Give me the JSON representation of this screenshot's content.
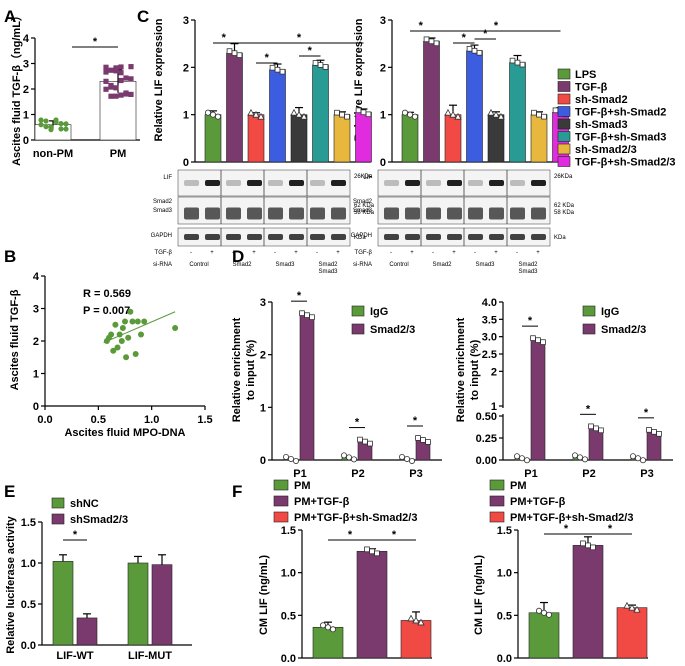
{
  "panels": [
    "A",
    "B",
    "C",
    "D",
    "E",
    "F"
  ],
  "colors": {
    "green": "#5a9a3a",
    "purple": "#7b3a6e",
    "red": "#f14a44",
    "blue": "#3c5de0",
    "gray": "#3a3a3a",
    "teal": "#289c94",
    "gold": "#e8b73e",
    "magenta": "#e02bde",
    "axis": "#000000"
  },
  "chart_data": [
    {
      "id": "A",
      "type": "bar",
      "ylabel": "Ascites fluid TGF-β（ng/mL）",
      "categories": [
        "non-PM",
        "PM"
      ],
      "values": [
        0.6,
        2.3
      ],
      "errors": [
        0.15,
        0.45
      ],
      "ylim": [
        0,
        4
      ],
      "yticks": [
        "0",
        "1",
        "2",
        "3",
        "4"
      ],
      "significance": [
        "*"
      ]
    },
    {
      "id": "B",
      "type": "scatter",
      "xlabel": "Ascites fluid MPO-DNA",
      "ylabel": "Ascites fluid TGF-β",
      "xlim": [
        0,
        1.5
      ],
      "ylim": [
        0,
        4
      ],
      "xticks": [
        "0.0",
        "0.5",
        "1.0",
        "1.5"
      ],
      "yticks": [
        "0",
        "1",
        "2",
        "3",
        "4"
      ],
      "stats": [
        "R = 0.569",
        "P = 0.007"
      ],
      "points": [
        [
          0.58,
          2.0
        ],
        [
          0.6,
          2.1
        ],
        [
          0.62,
          2.2
        ],
        [
          0.64,
          1.7
        ],
        [
          0.66,
          2.5
        ],
        [
          0.68,
          1.8
        ],
        [
          0.7,
          2.2
        ],
        [
          0.72,
          2.0
        ],
        [
          0.73,
          2.4
        ],
        [
          0.75,
          2.6
        ],
        [
          0.76,
          1.5
        ],
        [
          0.78,
          2.1
        ],
        [
          0.8,
          2.9
        ],
        [
          0.82,
          2.6
        ],
        [
          0.85,
          1.6
        ],
        [
          0.87,
          2.6
        ],
        [
          0.9,
          2.2
        ],
        [
          0.93,
          2.6
        ],
        [
          1.22,
          2.4
        ]
      ],
      "fit": [
        [
          0.55,
          1.95
        ],
        [
          1.22,
          2.9
        ]
      ]
    },
    {
      "id": "C1",
      "type": "bar",
      "ylabel": "Relative LIF expression",
      "categories": [
        "LPS",
        "TGF-β",
        "sh-Smad2",
        "TGF-β+sh-Smad2",
        "sh-Smad3",
        "TGF-β+sh-Smad3",
        "sh-Smad2/3",
        "TGF-β+sh-Smad2/3"
      ],
      "values": [
        1.0,
        2.3,
        1.0,
        1.95,
        1.0,
        2.05,
        1.0,
        1.05
      ],
      "errors": [
        0.08,
        0.2,
        0.04,
        0.12,
        0.15,
        0.1,
        0.06,
        0.07
      ],
      "ylim": [
        0,
        3
      ],
      "yticks": [
        "0",
        "1",
        "2",
        "3"
      ],
      "significance": [
        "*",
        "*",
        "*",
        "*"
      ]
    },
    {
      "id": "C2",
      "type": "bar",
      "ylabel": "Relative LIF expression",
      "categories": [
        "LPS",
        "TGF-β",
        "sh-Smad2",
        "TGF-β+sh-Smad2",
        "sh-Smad3",
        "TGF-β+sh-Smad3",
        "sh-Smad2/3",
        "TGF-β+sh-Smad2/3"
      ],
      "values": [
        1.0,
        2.55,
        1.0,
        2.35,
        1.0,
        2.1,
        1.0,
        1.05
      ],
      "errors": [
        0.05,
        0.07,
        0.2,
        0.12,
        0.06,
        0.15,
        0.06,
        0.1
      ],
      "ylim": [
        0,
        3
      ],
      "yticks": [
        "0",
        "1",
        "2",
        "3"
      ],
      "significance": [
        "*",
        "*",
        "*",
        "*"
      ]
    },
    {
      "id": "D1",
      "type": "bar",
      "ylabel_lines": [
        "Relative enrichment",
        "to input (%)"
      ],
      "categories": [
        "P1",
        "P2",
        "P3"
      ],
      "series": [
        {
          "name": "IgG",
          "values": [
            0.02,
            0.05,
            0.02
          ]
        },
        {
          "name": "Smad2/3",
          "values": [
            2.75,
            0.35,
            0.38
          ]
        }
      ],
      "ylim": [
        0,
        3
      ],
      "yticks": [
        "0",
        "1",
        "2",
        "3"
      ],
      "significance": [
        "*",
        "*",
        "*"
      ]
    },
    {
      "id": "D2",
      "type": "bar",
      "ylabel_lines": [
        "Relative enrichment",
        "to input (%)"
      ],
      "categories": [
        "P1",
        "P2",
        "P3"
      ],
      "series": [
        {
          "name": "IgG",
          "values": [
            0.02,
            0.03,
            0.02
          ]
        },
        {
          "name": "Smad2/3",
          "values": [
            2.9,
            0.36,
            0.32
          ]
        }
      ],
      "ylim": [
        0,
        4
      ],
      "yticks": [
        "0.00",
        "0.25",
        "0.50",
        "1",
        "2",
        "2.5",
        "3.0",
        "3.5",
        "4.0"
      ],
      "significance": [
        "*",
        "*",
        "*"
      ]
    },
    {
      "id": "E",
      "type": "bar",
      "ylabel": "Relative luciferase activity",
      "categories": [
        "LIF-WT",
        "LIF-MUT"
      ],
      "series": [
        {
          "name": "shNC",
          "values": [
            1.02,
            1.0
          ]
        },
        {
          "name": "shSmad2/3",
          "values": [
            0.33,
            0.98
          ]
        }
      ],
      "ylim": [
        0,
        1.5
      ],
      "yticks": [
        "0.0",
        "0.5",
        "1.0",
        "1.5"
      ],
      "significance": [
        "*"
      ]
    },
    {
      "id": "F1",
      "type": "bar",
      "ylabel": "CM LIF (ng/mL)",
      "legend": [
        "PM",
        "PM+TGF-β",
        "PM+TGF-β+sh-Smad2/3"
      ],
      "values": [
        0.36,
        1.25,
        0.44
      ],
      "errors": [
        0.06,
        0.03,
        0.1
      ],
      "ylim": [
        0,
        1.5
      ],
      "yticks": [
        "0.0",
        "0.5",
        "1.0",
        "1.5"
      ],
      "significance": [
        "*",
        "*"
      ]
    },
    {
      "id": "F2",
      "type": "bar",
      "ylabel": "CM LIF (ng/mL)",
      "legend": [
        "PM",
        "PM+TGF-β",
        "PM+TGF-β+sh-Smad2/3"
      ],
      "values": [
        0.53,
        1.32,
        0.59
      ],
      "errors": [
        0.12,
        0.1,
        0.03
      ],
      "ylim": [
        0,
        1.5
      ],
      "yticks": [
        "0.0",
        "0.5",
        "1.0",
        "1.5"
      ],
      "significance": [
        "*",
        "*"
      ]
    }
  ],
  "blots": {
    "row_labels": [
      "LIF",
      "Smad2",
      "Smad3",
      "GAPDH"
    ],
    "sizes": [
      "26KDa",
      "62 KDa",
      "58 KDa",
      "KDa"
    ],
    "tgf_label": "TGF-β",
    "sirna_label": "si-RNA",
    "signs": [
      "-",
      "+",
      "-",
      "+",
      "-",
      "+",
      "-",
      "+"
    ],
    "groups": [
      "Control",
      "Smad2",
      "Smad3",
      "Smad2",
      "Smad3"
    ]
  }
}
